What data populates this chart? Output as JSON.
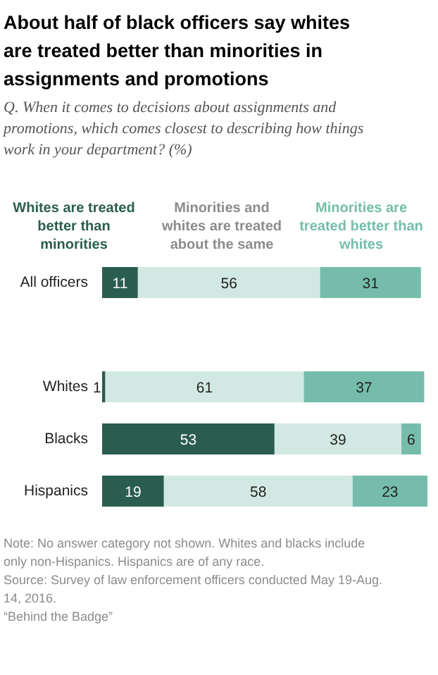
{
  "chart_data": {
    "type": "bar",
    "orientation": "horizontal",
    "stacked": true,
    "data_labels": true,
    "legend": "top",
    "grid": false,
    "title": "About half of black officers say whites are treated better than minorities in assignments and promotions",
    "subtitle": "Q. When it comes to decisions about assignments and promotions, which comes closest to describing how things work in your department? (%)",
    "categories": [
      "All officers",
      null,
      "Whites",
      "Blacks",
      "Hispanics"
    ],
    "series": [
      {
        "name": "Whites are treated better than minorities",
        "color": "#2a5d4f",
        "values": [
          11,
          null,
          1,
          53,
          19
        ]
      },
      {
        "name": "Minorities and whites are treated about the same",
        "color": "#d2e9e3",
        "values": [
          56,
          null,
          61,
          39,
          58
        ]
      },
      {
        "name": "Minorities are treated better than whites",
        "color": "#75bdaa",
        "values": [
          31,
          null,
          37,
          6,
          23
        ]
      }
    ],
    "annotations": [
      "Note: No answer category not shown. Whites and blacks include only non-Hispanics. Hispanics are of any race.",
      "Source: Survey of law enforcement officers conducted May 19-Aug. 14, 2016.",
      "“Behind the Badge”"
    ]
  }
}
